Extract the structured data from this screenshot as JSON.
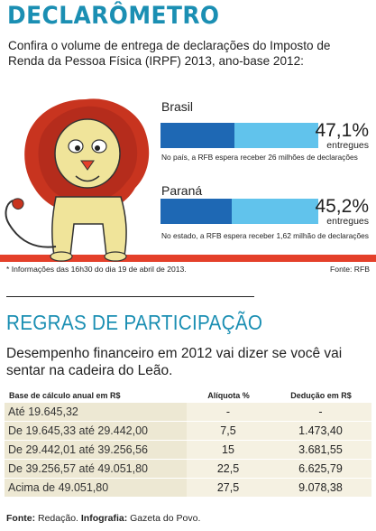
{
  "header": {
    "title": "DECLARÔMETRO",
    "subtitle": "Confira o volume de entrega de declarações do Imposto de Renda da Pessoa Física (IRPF) 2013, ano-base 2012:"
  },
  "progress": {
    "brasil": {
      "label": "Brasil",
      "percent_text": "47,1%",
      "percent": 47.1,
      "status": "entregues",
      "note": "No país, a RFB espera receber 26 milhões de declarações"
    },
    "parana": {
      "label": "Paraná",
      "percent_text": "45,2%",
      "percent": 45.2,
      "status": "entregues",
      "note": "No estado, a RFB espera receber 1,62 milhão de declarações"
    },
    "info": "* Informações das 16h30 do dia 19 de abril de 2013.",
    "source": "Fonte: RFB"
  },
  "rules": {
    "title": "REGRAS DE PARTICIPAÇÃO",
    "subtitle": "Desempenho financeiro em 2012 vai dizer se você vai sentar na cadeira do Leão.",
    "headers": [
      "Base de cálculo anual em R$",
      "Alíquota %",
      "Dedução em R$"
    ],
    "rows": [
      [
        "Até 19.645,32",
        "-",
        "-"
      ],
      [
        "De 19.645,33 até 29.442,00",
        "7,5",
        "1.473,40"
      ],
      [
        "De 29.442,01 até 39.256,56",
        "15",
        "3.681,55"
      ],
      [
        "De 39.256,57 até 49.051,80",
        "22,5",
        "6.625,79"
      ],
      [
        "Acima de 49.051,80",
        "27,5",
        "9.078,38"
      ]
    ]
  },
  "footer": {
    "source_label": "Fonte:",
    "source_value": "Redação.",
    "infographic_label": "Infografia:",
    "infographic_value": "Gazeta do Povo."
  },
  "colors": {
    "title_blue": "#1b8fb3",
    "bar_dark": "#1e68b4",
    "bar_light": "#61c3ec",
    "floor_red": "#e4402a",
    "table_bg": "#ede8d3"
  }
}
